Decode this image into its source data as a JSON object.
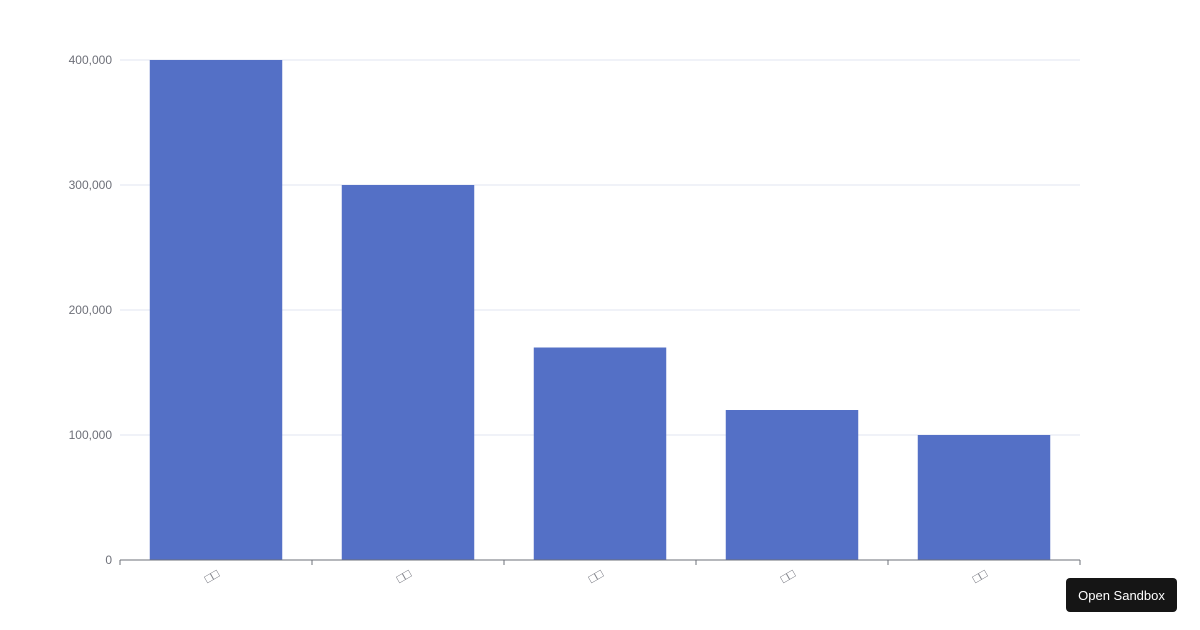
{
  "chart_data": {
    "type": "bar",
    "categories": [
      "□□",
      "□□",
      "□□",
      "□□",
      "□□"
    ],
    "values": [
      400000,
      300000,
      170000,
      120000,
      100000
    ],
    "ylim": [
      0,
      400000
    ],
    "yticks": [
      0,
      100000,
      200000,
      300000,
      400000
    ],
    "ytick_labels": [
      "0",
      "100,000",
      "200,000",
      "300,000",
      "400,000"
    ],
    "grid": true,
    "bar_color": "#5470c6",
    "title": "",
    "xlabel": "",
    "ylabel": ""
  },
  "button": {
    "label": "Open Sandbox"
  }
}
